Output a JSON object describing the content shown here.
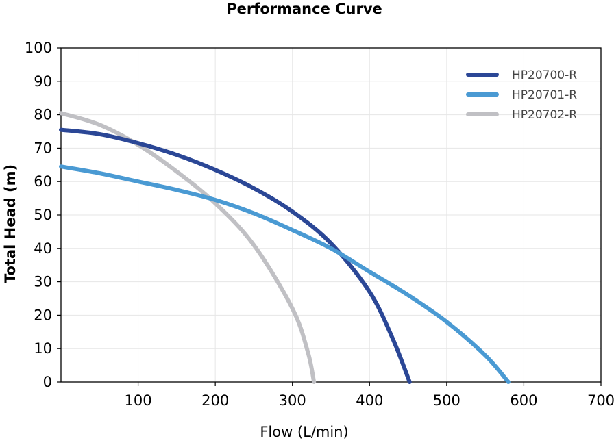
{
  "chart_data": {
    "type": "line",
    "title": "Performance Curve",
    "xlabel": "Flow (L/min)",
    "ylabel": "Total Head (m)",
    "xlim": [
      0,
      700
    ],
    "ylim": [
      0,
      100
    ],
    "xticks": [
      100,
      200,
      300,
      400,
      500,
      600,
      700
    ],
    "yticks": [
      0,
      10,
      20,
      30,
      40,
      50,
      60,
      70,
      80,
      90,
      100
    ],
    "grid": true,
    "legend_position": "top-right",
    "series": [
      {
        "name": "HP20700-R",
        "color": "#2b4796",
        "points": [
          [
            0,
            75.5
          ],
          [
            50,
            74.2
          ],
          [
            100,
            71.5
          ],
          [
            150,
            68
          ],
          [
            200,
            63.5
          ],
          [
            250,
            58
          ],
          [
            300,
            51
          ],
          [
            350,
            41.5
          ],
          [
            400,
            27
          ],
          [
            430,
            13
          ],
          [
            452,
            0
          ]
        ]
      },
      {
        "name": "HP20701-R",
        "color": "#4a9ad3",
        "points": [
          [
            0,
            64.5
          ],
          [
            50,
            62.5
          ],
          [
            100,
            60
          ],
          [
            150,
            57.5
          ],
          [
            200,
            54.5
          ],
          [
            250,
            50.5
          ],
          [
            300,
            45.5
          ],
          [
            350,
            40
          ],
          [
            400,
            33
          ],
          [
            450,
            26
          ],
          [
            500,
            18
          ],
          [
            550,
            8
          ],
          [
            580,
            0
          ]
        ]
      },
      {
        "name": "HP20702-R",
        "color": "#c0c0c4",
        "points": [
          [
            0,
            80.5
          ],
          [
            50,
            77
          ],
          [
            100,
            71
          ],
          [
            150,
            63
          ],
          [
            200,
            53.5
          ],
          [
            250,
            41
          ],
          [
            300,
            22
          ],
          [
            320,
            9
          ],
          [
            328,
            0
          ]
        ]
      }
    ]
  }
}
